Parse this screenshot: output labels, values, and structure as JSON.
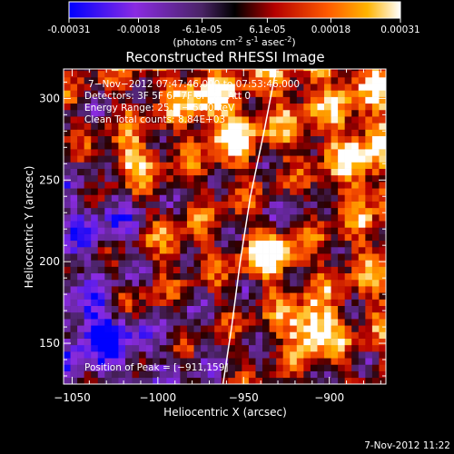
{
  "colorbar": {
    "tick_labels": [
      "-0.00031",
      "-0.00018",
      "-6.1e-05",
      "6.1e-05",
      "0.00018",
      "0.00031"
    ],
    "tick_values": [
      -0.00031,
      -0.00018,
      -6.1e-05,
      6.1e-05,
      0.00018,
      0.00031
    ],
    "range": [
      -0.00031,
      0.00031
    ],
    "unit_label": "(photons cm",
    "unit_exp1": "-2",
    "unit_mid": " s",
    "unit_exp2": "-1",
    "unit_mid2": " asec",
    "unit_exp3": "-2",
    "unit_end": ")",
    "stops": [
      "#0000ff",
      "#8a2be2",
      "#5a2a7a",
      "#000000",
      "#b40000",
      "#ff5a00",
      "#ffb400",
      "#ffffff"
    ]
  },
  "chart_data": {
    "type": "heatmap",
    "title": "Reconstructed RHESSI Image",
    "xlabel": "Heliocentric X (arcsec)",
    "ylabel": "Heliocentric Y (arcsec)",
    "xlim": [
      -1055,
      -867
    ],
    "ylim": [
      125,
      318
    ],
    "x_ticks": [
      -1050,
      -1000,
      -950,
      -900
    ],
    "y_ticks": [
      150,
      200,
      250,
      300
    ],
    "x_tick_labels": [
      "−1050",
      "−1000",
      "−950",
      "−900"
    ],
    "y_tick_labels": [
      "150",
      "200",
      "250",
      "300"
    ],
    "info": [
      "7−Nov−2012 07:47:46.000 to 07:53:46.000",
      "Detectors: 3F 5F 6F 7F 8F 9F, Att 0",
      "Energy Range: 25.0 − 50.0 keV",
      "Clean     Total counts: 8.84E+03"
    ],
    "peak_label": "Position of Peak = [−911,159]",
    "peak": [
      -911,
      159
    ],
    "limb_curve": [
      [
        -962,
        125
      ],
      [
        -957,
        160
      ],
      [
        -952,
        200
      ],
      [
        -946,
        240
      ],
      [
        -938,
        280
      ],
      [
        -931,
        318
      ]
    ],
    "hot_spots": [
      {
        "x": -911,
        "y": 159,
        "intensity": 0.00031
      },
      {
        "x": -935,
        "y": 205,
        "intensity": 0.00026
      },
      {
        "x": -1015,
        "y": 262,
        "intensity": 0.00018
      },
      {
        "x": -957,
        "y": 280,
        "intensity": 0.00016
      },
      {
        "x": -975,
        "y": 300,
        "intensity": 0.00015
      },
      {
        "x": -1015,
        "y": 175,
        "intensity": 0.00014
      },
      {
        "x": -990,
        "y": 210,
        "intensity": 0.00012
      },
      {
        "x": -880,
        "y": 265,
        "intensity": 0.00012
      }
    ],
    "cold_spots": [
      {
        "x": -1030,
        "y": 160,
        "intensity": -0.00024
      },
      {
        "x": -1035,
        "y": 225,
        "intensity": -0.00014
      },
      {
        "x": -925,
        "y": 235,
        "intensity": -0.00013
      }
    ],
    "grid": false
  },
  "footer": {
    "timestamp": "7-Nov-2012 11:22"
  }
}
